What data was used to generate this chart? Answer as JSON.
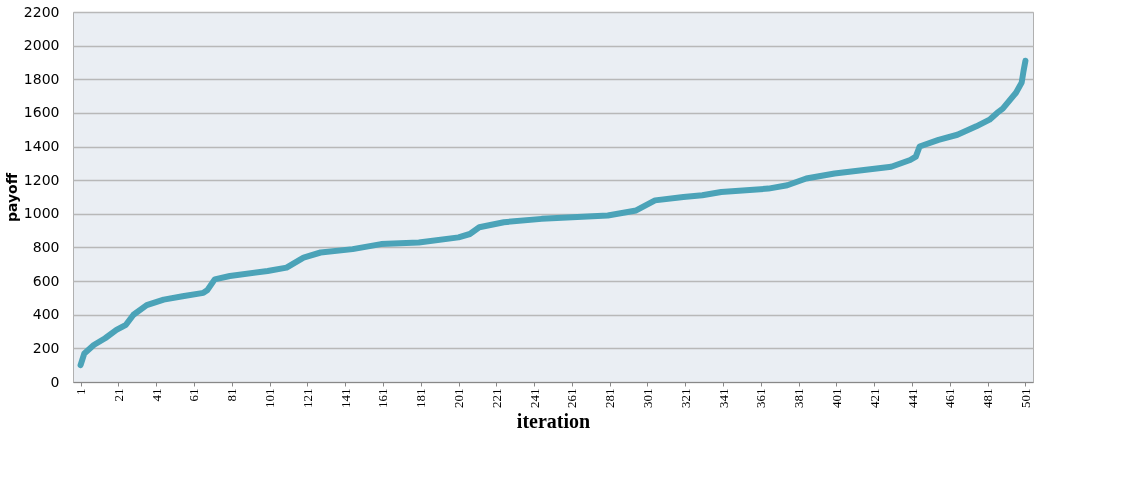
{
  "chart_data": {
    "type": "line",
    "xlabel": "iteration",
    "ylabel": "payoff",
    "x": [
      1,
      3,
      8,
      14,
      20,
      25,
      29,
      36,
      45,
      55,
      66,
      68,
      72,
      80,
      100,
      110,
      119,
      128,
      145,
      160,
      180,
      201,
      207,
      212,
      225,
      245,
      280,
      295,
      305,
      320,
      330,
      340,
      365,
      375,
      385,
      400,
      430,
      440,
      443,
      445,
      455,
      465,
      475,
      482,
      486,
      489,
      496,
      499,
      500,
      501
    ],
    "series": [
      {
        "color": "#4ba3b8",
        "values": [
          100,
          170,
          220,
          260,
          310,
          340,
          400,
          457,
          490,
          510,
          530,
          545,
          610,
          630,
          660,
          680,
          740,
          770,
          790,
          820,
          830,
          860,
          880,
          920,
          950,
          970,
          990,
          1020,
          1080,
          1100,
          1110,
          1130,
          1150,
          1170,
          1210,
          1240,
          1280,
          1320,
          1340,
          1400,
          1440,
          1470,
          1520,
          1560,
          1600,
          1625,
          1720,
          1780,
          1850,
          1910
        ]
      }
    ],
    "xlim": [
      -3,
      505
    ],
    "xticks": [
      1,
      21,
      41,
      61,
      81,
      101,
      121,
      141,
      161,
      181,
      201,
      221,
      241,
      261,
      281,
      301,
      321,
      341,
      361,
      381,
      401,
      421,
      441,
      461,
      481,
      501
    ],
    "ylim": [
      0,
      2200
    ],
    "yticks": [
      0,
      200,
      400,
      600,
      800,
      1000,
      1200,
      1400,
      1600,
      1800,
      2000,
      2200
    ],
    "grid": "y",
    "legend": false,
    "marker": "none",
    "line_style": "solid"
  }
}
